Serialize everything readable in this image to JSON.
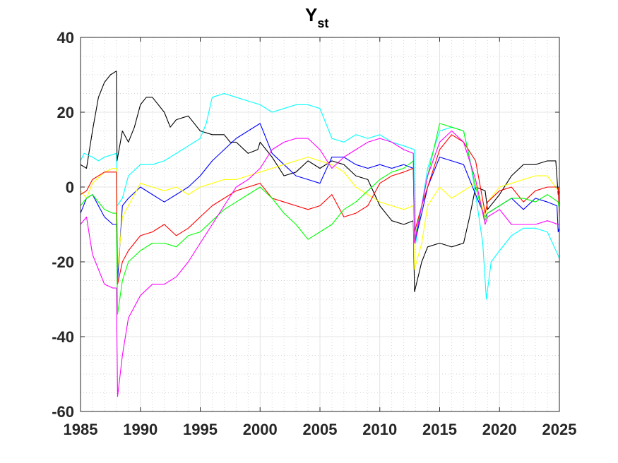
{
  "chart_data": {
    "type": "line",
    "title": "Y",
    "title_subscript": "st",
    "xlabel": "",
    "ylabel": "",
    "xlim": [
      1985,
      2025
    ],
    "ylim": [
      -60,
      40
    ],
    "xticks": [
      1985,
      1990,
      1995,
      2000,
      2005,
      2010,
      2015,
      2020,
      2025
    ],
    "xtick_labels": [
      "1985",
      "1990",
      "1995",
      "2000",
      "2005",
      "2010",
      "2015",
      "2020",
      "2025"
    ],
    "yticks": [
      -60,
      -40,
      -20,
      0,
      20,
      40
    ],
    "ytick_labels": [
      "-60",
      "-40",
      "-20",
      "0",
      "20",
      "40"
    ],
    "grid": true,
    "minor_grid": true,
    "legend": "none",
    "series": [
      {
        "color": "#000000",
        "x": [
          1985.0,
          1985.5,
          1986.0,
          1986.5,
          1987.0,
          1987.5,
          1988.0,
          1988.05,
          1988.5,
          1989.0,
          1989.5,
          1990.0,
          1990.5,
          1991.0,
          1992.0,
          1992.5,
          1993.0,
          1994.0,
          1995.0,
          1996.0,
          1997.0,
          1997.5,
          1998.0,
          1999.0,
          1999.8,
          2000.0,
          2001.0,
          2002.0,
          2003.0,
          2004.0,
          2005.0,
          2006.0,
          2007.0,
          2008.0,
          2009.0,
          2010.0,
          2011.0,
          2012.0,
          2012.8,
          2012.9,
          2013.5,
          2014.0,
          2015.0,
          2016.0,
          2017.0,
          2017.5,
          2018.0,
          2018.8,
          2019.0,
          2020.0,
          2021.0,
          2022.0,
          2023.0,
          2024.0,
          2024.7,
          2024.9,
          2025.0
        ],
        "y": [
          6,
          5,
          15,
          24,
          28,
          30,
          31,
          7,
          15,
          12,
          16,
          22,
          24,
          24,
          20,
          16,
          18,
          19,
          15,
          14,
          14,
          12,
          12,
          9,
          10,
          12,
          8,
          3,
          4,
          7,
          5,
          7,
          6,
          3,
          2,
          -5,
          -9,
          -10,
          -9,
          -28,
          -20,
          -16,
          -15,
          -16,
          -15,
          -8,
          0,
          -1,
          -6,
          -2,
          3,
          6,
          6,
          7,
          7,
          -2,
          -1
        ]
      },
      {
        "color": "#00ffff",
        "x": [
          1985.0,
          1985.3,
          1986.0,
          1986.5,
          1987.0,
          1988.0,
          1988.05,
          1988.5,
          1989.0,
          1990.0,
          1991.0,
          1992.0,
          1993.0,
          1994.0,
          1995.0,
          1995.5,
          1996.0,
          1997.0,
          1998.0,
          1999.0,
          2000.0,
          2001.0,
          2002.0,
          2003.0,
          2004.0,
          2005.0,
          2006.0,
          2007.0,
          2008.0,
          2009.0,
          2010.0,
          2011.0,
          2012.0,
          2012.9,
          2013.0,
          2014.0,
          2015.0,
          2016.0,
          2017.0,
          2017.5,
          2018.0,
          2018.6,
          2018.9,
          2019.3,
          2020.0,
          2021.0,
          2022.0,
          2023.0,
          2024.0,
          2025.0
        ],
        "y": [
          7,
          9,
          8,
          7,
          8,
          9,
          -5,
          -3,
          3,
          6,
          6,
          7,
          9,
          11,
          13,
          17,
          24,
          25,
          24,
          23,
          22,
          20,
          21,
          22,
          22,
          21,
          13,
          12,
          14,
          13,
          14,
          12,
          11,
          10,
          -15,
          5,
          15,
          16,
          15,
          8,
          -2,
          -15,
          -30,
          -20,
          -17,
          -13,
          -11,
          -11,
          -12,
          -19
        ]
      },
      {
        "color": "#0000ff",
        "x": [
          1985.0,
          1985.5,
          1986.0,
          1987.0,
          1987.7,
          1988.0,
          1988.1,
          1988.5,
          1989.0,
          1990.0,
          1991.0,
          1992.0,
          1993.0,
          1994.0,
          1995.0,
          1996.0,
          1997.0,
          1998.0,
          1999.0,
          2000.0,
          2001.0,
          2002.0,
          2003.0,
          2004.0,
          2005.0,
          2006.0,
          2007.0,
          2008.0,
          2009.0,
          2010.0,
          2011.0,
          2012.0,
          2012.8,
          2012.9,
          2013.5,
          2014.0,
          2015.0,
          2016.0,
          2017.0,
          2018.0,
          2018.8,
          2019.0,
          2020.0,
          2021.0,
          2022.0,
          2023.0,
          2024.0,
          2024.8,
          2024.9,
          2025.0
        ],
        "y": [
          -7,
          -3,
          -2,
          -8,
          -10,
          -10,
          -25,
          -5,
          -3,
          0,
          -2,
          -4,
          -2,
          0,
          3,
          7,
          10,
          13,
          15,
          17,
          9,
          6,
          3,
          2,
          1,
          8,
          8,
          6,
          5,
          6,
          5,
          6,
          5,
          -15,
          -7,
          0,
          8,
          7,
          6,
          -2,
          -8,
          -7,
          -5,
          -3,
          -6,
          -3,
          -4,
          -5,
          -12,
          -11
        ]
      },
      {
        "color": "#ffff00",
        "x": [
          1985.0,
          1985.5,
          1986.0,
          1987.0,
          1987.7,
          1988.0,
          1988.1,
          1988.5,
          1989.0,
          1990.0,
          1991.0,
          1992.0,
          1993.0,
          1994.0,
          1995.0,
          1996.0,
          1997.0,
          1998.0,
          1999.0,
          2000.0,
          2001.0,
          2002.0,
          2003.0,
          2004.0,
          2005.0,
          2006.0,
          2007.0,
          2008.0,
          2009.0,
          2010.0,
          2011.0,
          2012.0,
          2012.8,
          2012.9,
          2013.5,
          2014.0,
          2015.0,
          2016.0,
          2017.0,
          2018.0,
          2018.8,
          2019.0,
          2020.0,
          2021.0,
          2022.0,
          2023.0,
          2024.0,
          2024.9,
          2025.0
        ],
        "y": [
          -1,
          -3,
          1,
          4,
          5,
          5,
          -22,
          -8,
          -5,
          1,
          0,
          -1,
          0,
          -2,
          0,
          1,
          2,
          2,
          3,
          4,
          5,
          6,
          7,
          8,
          7,
          6,
          4,
          0,
          -2,
          -4,
          -5,
          -6,
          -5,
          -22,
          -15,
          -5,
          0,
          -3,
          -1,
          1,
          -8,
          -4,
          0,
          1,
          2,
          3,
          3,
          -1,
          0
        ]
      },
      {
        "color": "#ff0000",
        "x": [
          1985.0,
          1985.5,
          1986.0,
          1987.0,
          1987.7,
          1988.0,
          1988.1,
          1988.5,
          1989.0,
          1990.0,
          1991.0,
          1992.0,
          1993.0,
          1994.0,
          1995.0,
          1996.0,
          1997.0,
          1998.0,
          1999.0,
          2000.0,
          2001.0,
          2002.0,
          2003.0,
          2004.0,
          2005.0,
          2006.0,
          2007.0,
          2008.0,
          2009.0,
          2010.0,
          2011.0,
          2012.0,
          2012.8,
          2012.9,
          2013.5,
          2014.0,
          2015.0,
          2016.0,
          2017.0,
          2018.0,
          2018.8,
          2019.0,
          2020.0,
          2021.0,
          2022.0,
          2023.0,
          2024.0,
          2024.9,
          2025.0
        ],
        "y": [
          -2,
          -1,
          2,
          4,
          4,
          4,
          -26,
          -20,
          -17,
          -13,
          -12,
          -10,
          -13,
          -11,
          -8,
          -5,
          -3,
          -1,
          0,
          1,
          -3,
          -4,
          -5,
          -6,
          -5,
          -2,
          -8,
          -7,
          -5,
          1,
          3,
          4,
          5,
          -12,
          -5,
          0,
          10,
          14,
          12,
          7,
          -7,
          -4,
          -1,
          0,
          -4,
          -1,
          0,
          0,
          -8
        ]
      },
      {
        "color": "#00ff00",
        "x": [
          1985.0,
          1985.5,
          1986.0,
          1987.0,
          1987.7,
          1988.0,
          1988.1,
          1988.5,
          1989.0,
          1990.0,
          1991.0,
          1992.0,
          1993.0,
          1994.0,
          1995.0,
          1996.0,
          1997.0,
          1998.0,
          1999.0,
          2000.0,
          2001.0,
          2002.0,
          2003.0,
          2004.0,
          2005.0,
          2006.0,
          2007.0,
          2008.0,
          2009.0,
          2010.0,
          2011.0,
          2012.0,
          2012.8,
          2012.9,
          2013.5,
          2014.0,
          2015.0,
          2016.0,
          2017.0,
          2018.0,
          2018.8,
          2019.0,
          2020.0,
          2021.0,
          2022.0,
          2023.0,
          2024.0,
          2024.9,
          2025.0
        ],
        "y": [
          -5,
          -3,
          -2,
          -6,
          -7,
          -7,
          -34,
          -25,
          -20,
          -17,
          -15,
          -15,
          -16,
          -13,
          -12,
          -9,
          -6,
          -4,
          -2,
          0,
          -3,
          -7,
          -10,
          -14,
          -12,
          -10,
          -6,
          -4,
          -1,
          2,
          4,
          5,
          7,
          -14,
          -5,
          3,
          17,
          16,
          15,
          0,
          -9,
          -7,
          -5,
          -3,
          -3,
          -4,
          -2,
          -4,
          -6
        ]
      },
      {
        "color": "#ff00ff",
        "x": [
          1985.0,
          1985.5,
          1986.0,
          1987.0,
          1987.7,
          1988.0,
          1988.1,
          1988.5,
          1989.0,
          1990.0,
          1991.0,
          1992.0,
          1993.0,
          1994.0,
          1995.0,
          1996.0,
          1997.0,
          1998.0,
          1999.0,
          2000.0,
          2001.0,
          2002.0,
          2003.0,
          2004.0,
          2005.0,
          2006.0,
          2007.0,
          2008.0,
          2009.0,
          2010.0,
          2011.0,
          2012.0,
          2012.8,
          2012.9,
          2013.5,
          2014.0,
          2015.0,
          2016.0,
          2017.0,
          2018.0,
          2018.8,
          2019.0,
          2020.0,
          2021.0,
          2022.0,
          2023.0,
          2024.0,
          2024.9,
          2025.0
        ],
        "y": [
          -10,
          -8,
          -18,
          -26,
          -27,
          -27,
          -56,
          -45,
          -35,
          -29,
          -26,
          -26,
          -24,
          -20,
          -15,
          -10,
          -5,
          0,
          2,
          5,
          10,
          12,
          13,
          13,
          10,
          5,
          8,
          10,
          12,
          13,
          12,
          10,
          9,
          -15,
          -5,
          3,
          12,
          15,
          12,
          2,
          -10,
          -8,
          -6,
          -10,
          -10,
          -10,
          -9,
          -10,
          -10
        ]
      }
    ]
  }
}
